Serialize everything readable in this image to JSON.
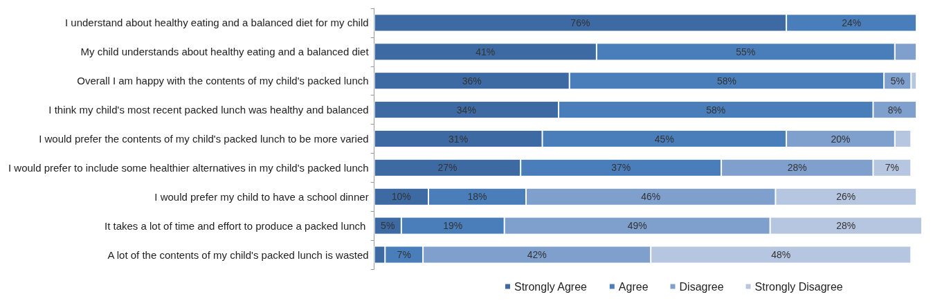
{
  "chart_data": {
    "type": "bar",
    "orientation": "horizontal",
    "stacked": true,
    "legend": "bottom",
    "grid": false,
    "tick_labels": "y",
    "categories": [
      "I understand about healthy eating and a balanced diet for my child",
      "My child understands about healthy eating and a balanced diet",
      "Overall I am happy with the contents of my child's packed lunch",
      "I think my child's most recent packed lunch was healthy and balanced",
      "I would prefer the contents of my child's packed lunch to be more varied",
      "I would prefer to include some healthier alternatives in my child's packed lunch",
      "I would prefer my child to have a school dinner",
      "It takes a lot of time and effort to produce a packed lunch ",
      "A lot of the contents of my child's packed lunch is wasted"
    ],
    "series": [
      {
        "name": "Strongly Agree",
        "color": "#3d6aa2",
        "values": [
          76,
          41,
          36,
          34,
          31,
          27,
          10,
          5,
          2
        ],
        "value_labels": [
          "76%",
          "41%",
          "36%",
          "34%",
          "31%",
          "27%",
          "10%",
          "5%",
          null
        ]
      },
      {
        "name": "Agree",
        "color": "#4a7ebb",
        "values": [
          24,
          55,
          58,
          58,
          45,
          37,
          18,
          19,
          7
        ],
        "value_labels": [
          "24%",
          "55%",
          "58%",
          "58%",
          "45%",
          "37%",
          "18%",
          "19%",
          "7%"
        ]
      },
      {
        "name": "Disagree",
        "color": "#7f9fcd",
        "values": [
          null,
          4,
          5,
          8,
          20,
          28,
          46,
          49,
          42
        ],
        "value_labels": [
          null,
          null,
          "5%",
          "8%",
          "20%",
          "28%",
          "46%",
          "49%",
          "42%"
        ]
      },
      {
        "name": "Strongly Disagree",
        "color": "#b7c6e0",
        "values": [
          null,
          null,
          1,
          null,
          3,
          7,
          26,
          28,
          48
        ],
        "value_labels": [
          null,
          null,
          null,
          null,
          null,
          "7%",
          "26%",
          "28%",
          "48%"
        ]
      }
    ]
  }
}
